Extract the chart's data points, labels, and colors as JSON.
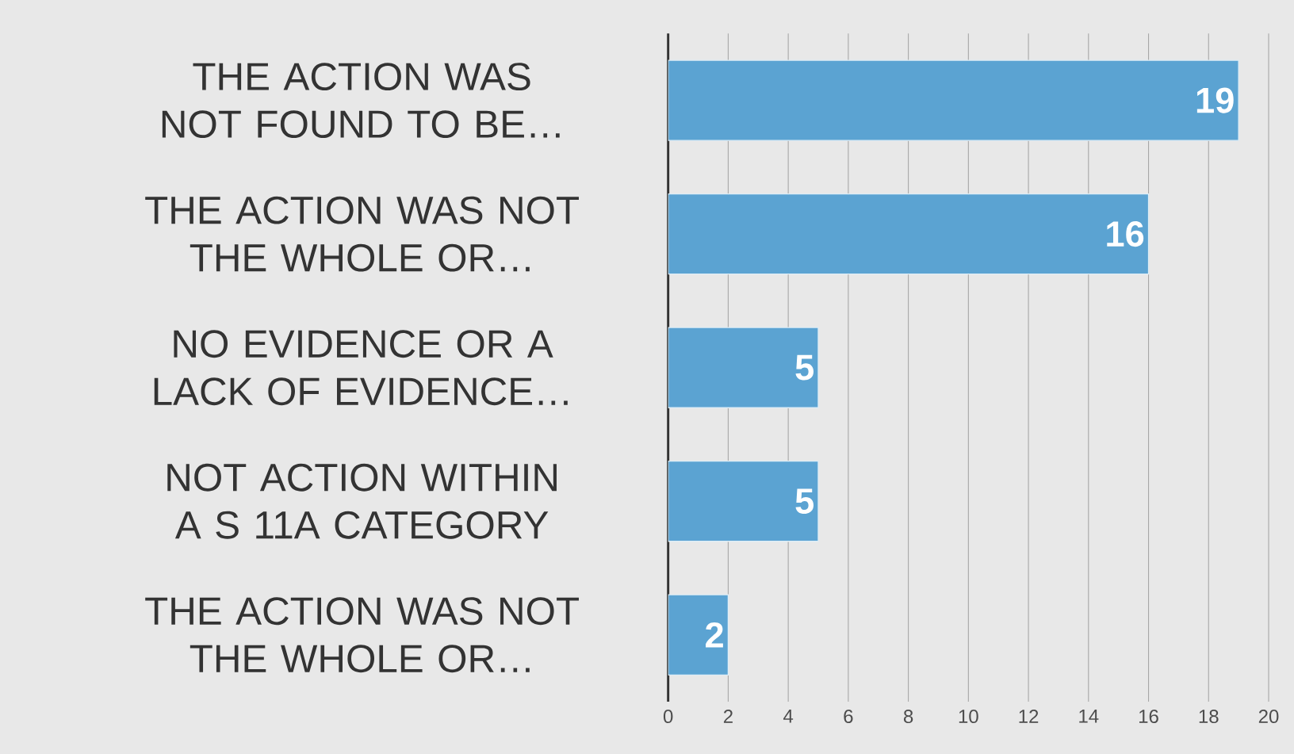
{
  "chart_data": {
    "type": "bar",
    "orientation": "horizontal",
    "categories": [
      "THE ACTION WAS NOT FOUND TO BE…",
      "THE ACTION WAS NOT THE WHOLE OR…",
      "NO EVIDENCE OR A LACK OF EVIDENCE…",
      "NOT ACTION WITHIN A S 11A CATEGORY",
      "THE ACTION WAS NOT THE WHOLE OR…"
    ],
    "values": [
      19,
      16,
      5,
      5,
      2
    ],
    "color": "#5ba3d2",
    "xlim": [
      0,
      20
    ],
    "xticks": [
      0,
      2,
      4,
      6,
      8,
      10,
      12,
      14,
      16,
      18,
      20
    ],
    "grid": "x",
    "data_labels": true
  }
}
